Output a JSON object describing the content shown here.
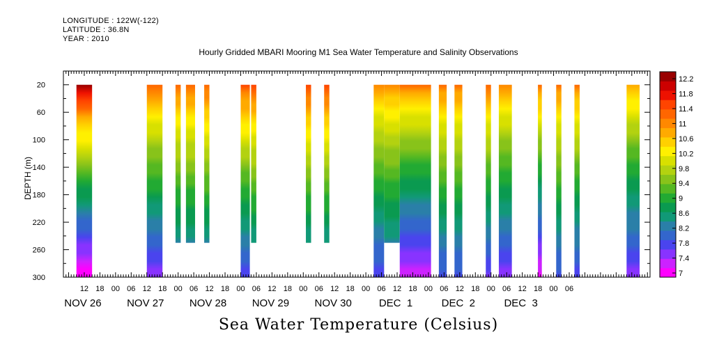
{
  "header": {
    "longitude": "LONGITUDE : 122W(-122)",
    "latitude": "LATITUDE : 36.8N",
    "year": "YEAR : 2010"
  },
  "chart_data": {
    "type": "heatmap",
    "title": "Hourly Gridded MBARI Mooring M1 Sea Water Temperature and Salinity Observations",
    "caption": "Sea Water Temperature (Celsius)",
    "ylabel": "DEPTH (m)",
    "xlabel": "",
    "ylim": [
      300,
      0
    ],
    "y_ticks": [
      20,
      60,
      100,
      140,
      180,
      220,
      260,
      300
    ],
    "x_hour_ticks": [
      "12",
      "18",
      "00",
      "06",
      "12",
      "18",
      "00",
      "06",
      "12",
      "18",
      "00",
      "06",
      "12",
      "18",
      "00",
      "06",
      "12",
      "18",
      "00",
      "06",
      "12",
      "18",
      "00",
      "06",
      "12",
      "18",
      "00",
      "06",
      "12",
      "18",
      "00",
      "06"
    ],
    "x_day_labels": [
      "NOV 26",
      "NOV 27",
      "NOV 28",
      "NOV 29",
      "NOV 30",
      "DEC  1",
      "DEC  2",
      "DEC  3"
    ],
    "colorbar": {
      "ticks": [
        "12.2",
        "11.8",
        "11.4",
        "11",
        "10.6",
        "10.2",
        "9.8",
        "9.4",
        "9",
        "8.6",
        "8.2",
        "7.8",
        "7.4",
        "7"
      ],
      "colors": [
        "#ff00ff",
        "#cc22ff",
        "#8833ff",
        "#4a44ee",
        "#3366cc",
        "#2a7fa8",
        "#119977",
        "#0a9a50",
        "#22aa33",
        "#55b822",
        "#88c31a",
        "#b3d210",
        "#d8e000",
        "#fff000",
        "#ffd000",
        "#ffaa00",
        "#ff8800",
        "#ff6600",
        "#ff4400",
        "#ee1100",
        "#cc0000",
        "#990000"
      ]
    },
    "columns": [
      {
        "t": -27,
        "w": 6,
        "bottom": 300,
        "surface": 12.3,
        "deep": 7.0
      },
      {
        "t": 0,
        "w": 6,
        "bottom": 300,
        "surface": 11.3,
        "deep": 7.6
      },
      {
        "t": 0,
        "w": 0,
        "bottom": 250,
        "surface": 11.0,
        "deep": 8.2
      },
      {
        "t": 11,
        "w": 2,
        "bottom": 250,
        "surface": 11.3,
        "deep": 8.0
      },
      {
        "t": 15,
        "w": 3.5,
        "bottom": 250,
        "surface": 11.3,
        "deep": 8.0
      },
      {
        "t": 22,
        "w": 2,
        "bottom": 250,
        "surface": 11.4,
        "deep": 8.0
      },
      {
        "t": 36,
        "w": 3.5,
        "bottom": 300,
        "surface": 11.5,
        "deep": 7.8
      },
      {
        "t": 40,
        "w": 2,
        "bottom": 250,
        "surface": 11.5,
        "deep": 8.0
      },
      {
        "t": 61,
        "w": 2,
        "bottom": 250,
        "surface": 11.6,
        "deep": 8.0
      },
      {
        "t": 68,
        "w": 2,
        "bottom": 250,
        "surface": 11.6,
        "deep": 8.0
      },
      {
        "t": 87,
        "w": 4,
        "bottom": 300,
        "surface": 11.0,
        "deep": 7.8
      },
      {
        "t": 91,
        "w": 6,
        "bottom": 250,
        "surface": 11.0,
        "deep": 8.0
      },
      {
        "t": 97,
        "w": 12,
        "bottom": 300,
        "surface": 11.2,
        "deep": 7.3
      },
      {
        "t": 112,
        "w": 3,
        "bottom": 300,
        "surface": 11.2,
        "deep": 7.9
      },
      {
        "t": 118,
        "w": 3,
        "bottom": 300,
        "surface": 11.2,
        "deep": 7.9
      },
      {
        "t": 130,
        "w": 2,
        "bottom": 300,
        "surface": 11.3,
        "deep": 7.7
      },
      {
        "t": 135,
        "w": 5,
        "bottom": 300,
        "surface": 11.0,
        "deep": 7.6
      },
      {
        "t": 150,
        "w": 1.5,
        "bottom": 300,
        "surface": 11.3,
        "deep": 7.2
      },
      {
        "t": 157,
        "w": 2,
        "bottom": 300,
        "surface": 11.2,
        "deep": 7.9
      },
      {
        "t": 164,
        "w": 2,
        "bottom": 300,
        "surface": 11.2,
        "deep": 7.8
      },
      {
        "t": 184,
        "w": 5,
        "bottom": 300,
        "surface": 10.9,
        "deep": 7.6
      }
    ]
  }
}
